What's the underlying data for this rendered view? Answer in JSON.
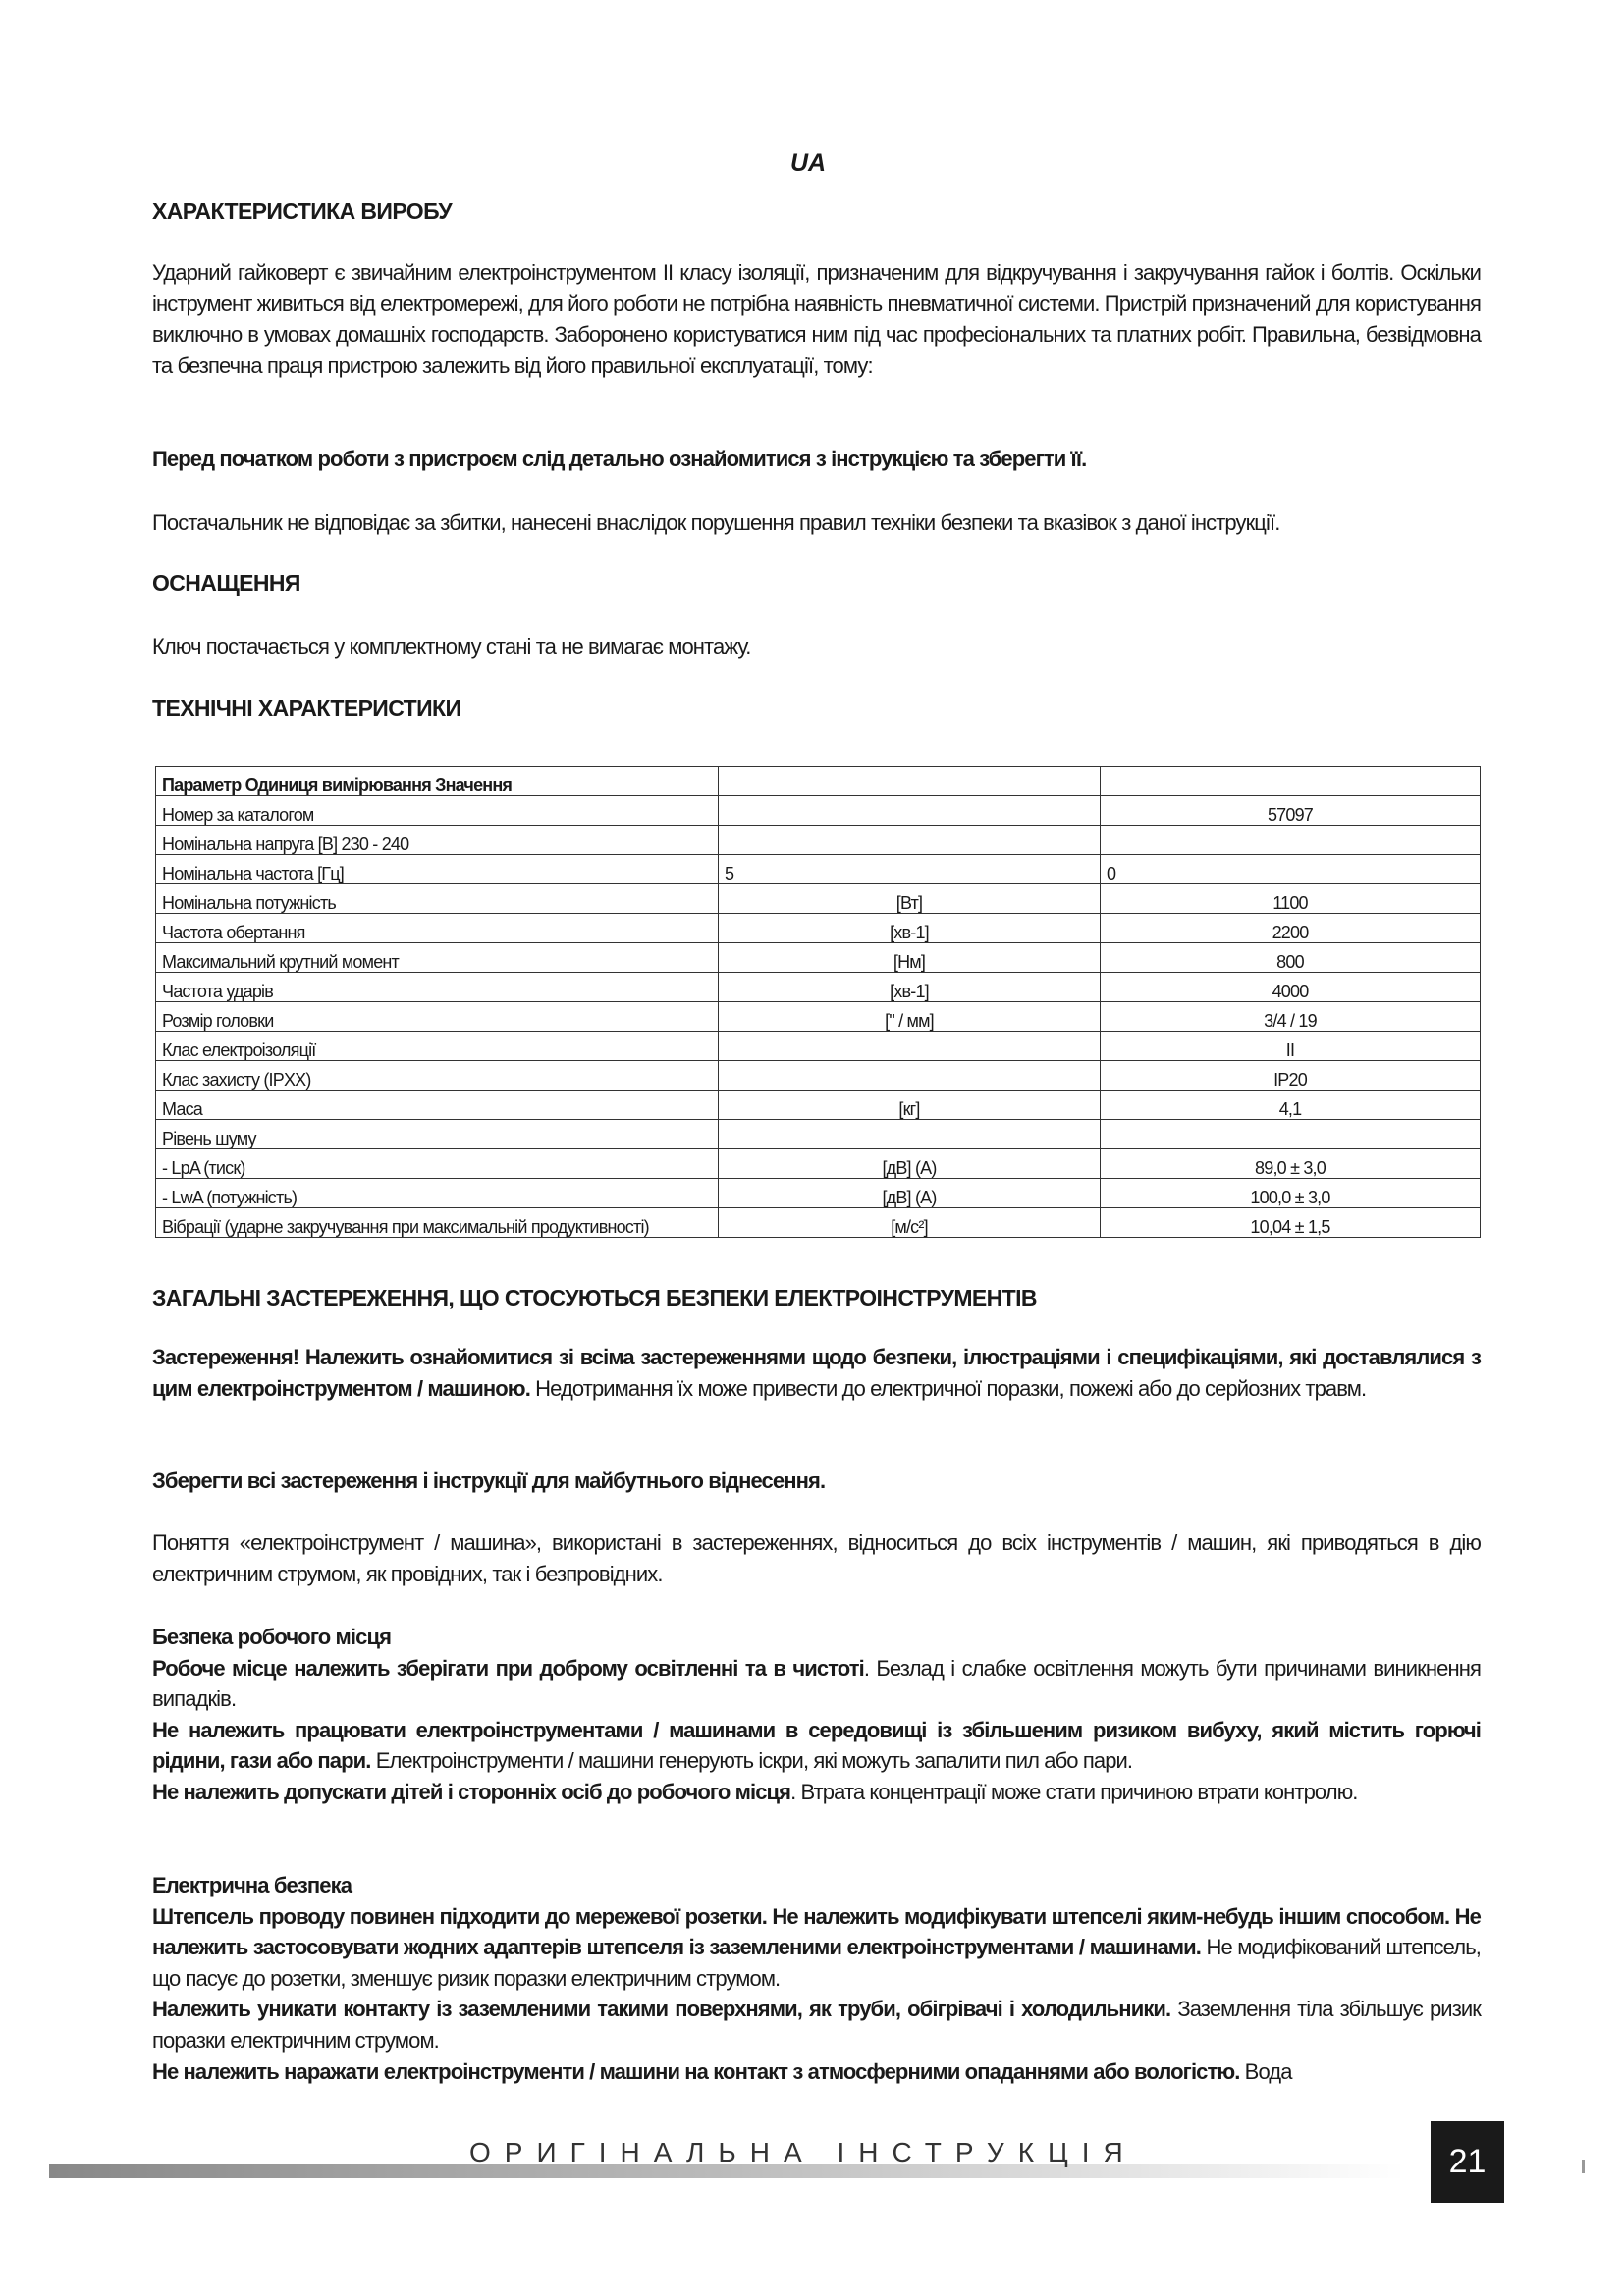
{
  "lang_mark": "UA",
  "section1": {
    "title": "ХАРАКТЕРИСТИКА ВИРОБУ",
    "para": "Ударний гайковерт є звичайним електроінструментом II класу ізоляції, призначеним для відкручування і закручування гайок і болтів. Оскільки інструмент живиться від електромережі, для його роботи не потрібна наявність пневматичної системи. Пристрій призначений для користування виключно в умовах домашніх господарств. Заборонено користуватися ним під час професіональних та платних робіт. Правильна, безвідмовна та безпечна праця пристрою залежить від його правильної експлуатації, тому:",
    "bold_note": "Перед початком роботи з пристроєм слід детально ознайомитися з інструкцією та зберегти її.",
    "disclaimer": "Постачальник не відповідає за збитки, нанесені внаслідок порушення правил техніки безпеки та вказівок з даної інструкції."
  },
  "section2": {
    "title": "ОСНАЩЕННЯ",
    "para": "Ключ постачається у комплектному стані та не вимагає монтажу."
  },
  "section3": {
    "title": "ТЕХНІЧНІ ХАРАКТЕРИСТИКИ",
    "table": {
      "header": [
        "Параметр   Одиниця вимірювання   Значення",
        "",
        ""
      ],
      "rows": [
        [
          "Номер за каталогом",
          "",
          "57097"
        ],
        [
          "Номінальна напруга    [В] 230 - 240",
          "",
          ""
        ],
        [
          "Номінальна частота    [Гц]",
          "5",
          "0"
        ],
        [
          "Номінальна потужність",
          "[Вт]",
          "1100"
        ],
        [
          "Частота обертання",
          "[хв-1]",
          "2200"
        ],
        [
          "Максимальний крутний момент",
          "[Нм]",
          "800"
        ],
        [
          "Частота ударів",
          "[хв-1]",
          "4000"
        ],
        [
          "Розмір головки",
          "[\" / мм]",
          "3/4 / 19"
        ],
        [
          "Клас електроізоляції",
          "",
          "II"
        ],
        [
          "Клас захисту (IPXX)",
          "",
          "IP20"
        ],
        [
          "Маса",
          "[кг]",
          "4,1"
        ],
        [
          "Рівень шуму",
          "",
          ""
        ],
        [
          "- LpA (тиск)",
          "[дВ] (A)",
          "89,0 ± 3,0"
        ],
        [
          "- LwA (потужність)",
          "[дВ] (A)",
          "100,0 ± 3,0"
        ],
        [
          "Вібрації (ударне закручування при максимальній продуктивності)",
          "[м/с²]",
          "10,04 ± 1,5"
        ]
      ]
    }
  },
  "section4": {
    "title": "ЗАГАЛЬНІ ЗАСТЕРЕЖЕННЯ, ЩО СТОСУЮТЬСЯ БЕЗПЕКИ ЕЛЕКТРОІНСТРУМЕНТІВ",
    "warn_bold": "Застереження! Належить ознайомитися зі всіма застереженнями щодо безпеки, ілюстраціями і специфікаціями, які доставлялися з цим електроінструментом / машиною.",
    "warn_normal": " Недотримання їх може привести до електричної поразки, пожежі або до серйозних травм.",
    "keep": "Зберегти всі застереження і інструкції для майбутнього віднесення.",
    "concept": "Поняття «електроінструмент / машина», використані в застереженнях, відноситься до всіх інструментів / машин, які приводяться в дію електричним струмом, як провідних, так і безпровідних.",
    "workplace": {
      "title": "Безпека робочого місця",
      "items": [
        {
          "bold": "Робоче місце належить зберігати при доброму освітленні та в чистоті",
          "normal": ". Безлад і слабке освітлення можуть бути причинами виникнення випадків."
        },
        {
          "bold": "Не належить працювати електроінструментами / машинами в середовищі із збільшеним ризиком вибуху, який містить горючі рідини, гази або пари.",
          "normal": " Електроінструменти / машини генерують іскри, які можуть запалити пил або пари."
        },
        {
          "bold": "Не належить допускати дітей і сторонніх осіб до робочого місця",
          "normal": ". Втрата концентрації може стати причиною втрати контролю."
        }
      ]
    },
    "electrical": {
      "title": "Електрична безпека",
      "items": [
        {
          "bold": "Штепсель проводу повинен підходити до мережевої розетки. Не належить модифікувати штепселі яким-небудь іншим способом. Не належить застосовувати жодних адаптерів штепселя із заземленими електроінструментами / машинами.",
          "normal": " Не модифікований штепсель, що пасує до розетки, зменшує ризик поразки електричним струмом."
        },
        {
          "bold": "Належить уникати контакту із заземленими такими поверхнями, як труби, обігрівачі і холодильники.",
          "normal": " Заземлення тіла збільшує ризик поразки електричним струмом."
        },
        {
          "bold": "Не належить наражати електроінструменти / машини на контакт з атмосферними опаданнями або вологістю.",
          "normal": " Вода"
        }
      ]
    }
  },
  "footer": {
    "text": "ОРИГІНАЛЬНА ІНСТРУКЦІЯ",
    "page_number": "21"
  }
}
